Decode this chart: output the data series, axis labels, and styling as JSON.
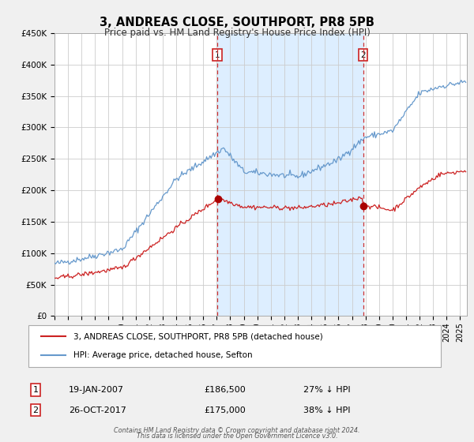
{
  "title": "3, ANDREAS CLOSE, SOUTHPORT, PR8 5PB",
  "subtitle": "Price paid vs. HM Land Registry's House Price Index (HPI)",
  "hpi_label": "HPI: Average price, detached house, Sefton",
  "price_label": "3, ANDREAS CLOSE, SOUTHPORT, PR8 5PB (detached house)",
  "footer1": "Contains HM Land Registry data © Crown copyright and database right 2024.",
  "footer2": "This data is licensed under the Open Government Licence v3.0.",
  "annotation1": {
    "label": "1",
    "date": "19-JAN-2007",
    "price": "£186,500",
    "pct": "27% ↓ HPI",
    "x_year": 2007.05
  },
  "annotation2": {
    "label": "2",
    "date": "26-OCT-2017",
    "price": "£175,000",
    "pct": "38% ↓ HPI",
    "x_year": 2017.82
  },
  "dot1_value": 186500,
  "dot2_value": 175000,
  "ylim": [
    0,
    450000
  ],
  "xlim_start": 1995.0,
  "xlim_end": 2025.5,
  "yticks": [
    0,
    50000,
    100000,
    150000,
    200000,
    250000,
    300000,
    350000,
    400000,
    450000
  ],
  "ytick_labels": [
    "£0",
    "£50K",
    "£100K",
    "£150K",
    "£200K",
    "£250K",
    "£300K",
    "£350K",
    "£400K",
    "£450K"
  ],
  "xticks": [
    1995,
    1996,
    1997,
    1998,
    1999,
    2000,
    2001,
    2002,
    2003,
    2004,
    2005,
    2006,
    2007,
    2008,
    2009,
    2010,
    2011,
    2012,
    2013,
    2014,
    2015,
    2016,
    2017,
    2018,
    2019,
    2020,
    2021,
    2022,
    2023,
    2024,
    2025
  ],
  "hpi_color": "#6699cc",
  "price_color": "#cc2222",
  "dot_color": "#aa0000",
  "shade_color": "#ddeeff",
  "vline_color": "#cc3333",
  "grid_color": "#cccccc",
  "background_color": "#f0f0f0",
  "plot_bg_color": "#ffffff",
  "box_color": "#cc2222"
}
